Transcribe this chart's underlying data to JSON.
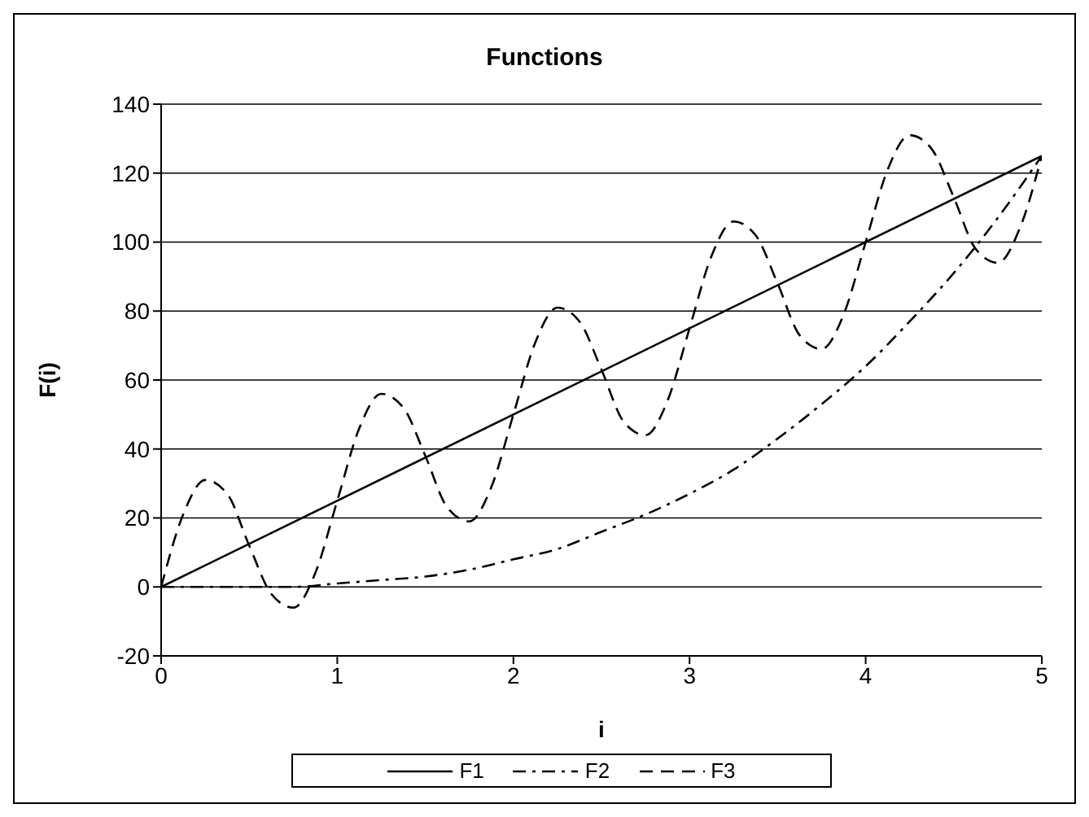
{
  "chart_data": {
    "type": "line",
    "title": "Functions",
    "xlabel": "i",
    "ylabel": "F(i)",
    "xlim": [
      0,
      5
    ],
    "xticks": [
      0,
      1,
      2,
      3,
      4,
      5
    ],
    "ylim": [
      -20,
      140
    ],
    "yticks": [
      -20,
      0,
      20,
      40,
      60,
      80,
      100,
      120,
      140
    ],
    "grid": "y",
    "legend": "bottom",
    "marker": "none",
    "series": [
      {
        "name": "F1",
        "color": "#000000",
        "line_style": "solid",
        "x": [
          0,
          5
        ],
        "values": [
          0,
          125
        ]
      },
      {
        "name": "F2",
        "color": "#000000",
        "line_style": "dashdot",
        "x": [
          0,
          0.25,
          0.5,
          0.75,
          1,
          1.25,
          1.5,
          1.75,
          2,
          2.25,
          2.5,
          2.75,
          3,
          3.25,
          3.5,
          3.75,
          4,
          4.25,
          4.5,
          4.75,
          5
        ],
        "values": [
          0,
          0,
          0,
          0,
          1,
          2,
          3,
          5,
          8,
          11,
          16,
          21,
          27,
          34,
          43,
          53,
          64,
          77,
          91,
          107,
          125
        ]
      },
      {
        "name": "F3",
        "color": "#000000",
        "line_style": "dashed",
        "x": [
          0,
          0.125,
          0.25,
          0.375,
          0.5,
          0.625,
          0.75,
          0.875,
          1,
          1.125,
          1.25,
          1.375,
          1.5,
          1.625,
          1.75,
          1.875,
          2,
          2.125,
          2.25,
          2.375,
          2.5,
          2.625,
          2.75,
          2.875,
          3,
          3.125,
          3.25,
          3.375,
          3.5,
          3.625,
          3.75,
          3.875,
          4,
          4.125,
          4.25,
          4.375,
          4.5,
          4.625,
          4.75,
          4.875,
          5
        ],
        "values": [
          0,
          21,
          31,
          27,
          12,
          -2,
          -6,
          4,
          25,
          46,
          56,
          52,
          38,
          23,
          19,
          29,
          50,
          71,
          81,
          77,
          63,
          48,
          44,
          54,
          75,
          96,
          106,
          102,
          88,
          73,
          69,
          79,
          100,
          121,
          131,
          127,
          113,
          98,
          94,
          104,
          125
        ]
      }
    ]
  }
}
